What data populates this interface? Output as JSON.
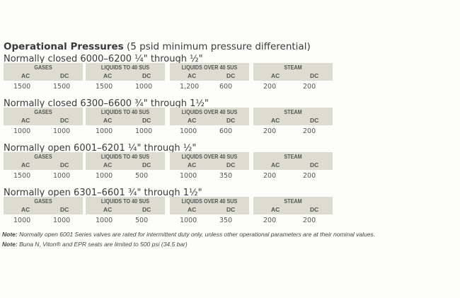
{
  "title": {
    "bold": "Operational Pressures",
    "rest": " (5 psid minimum pressure differential)"
  },
  "labels": {
    "ac": "AC",
    "dc": "DC"
  },
  "columns": [
    "GASES",
    "LIQUIDS TO 40 SUS",
    "LIQUIDS OVER 40 SUS",
    "STEAM"
  ],
  "sections": [
    {
      "title": "Normally closed 6000–6200 ¼\" through ½\"",
      "values": [
        [
          "1500",
          "1500"
        ],
        [
          "1500",
          "1000"
        ],
        [
          "1,200",
          "600"
        ],
        [
          "200",
          "200"
        ]
      ]
    },
    {
      "title": "Normally closed 6300–6600 ¾\" through 1½\"",
      "values": [
        [
          "1000",
          "1000"
        ],
        [
          "1000",
          "1000"
        ],
        [
          "1000",
          "600"
        ],
        [
          "200",
          "200"
        ]
      ]
    },
    {
      "title": "Normally open 6001–6201 ¼\" through ½\"",
      "values": [
        [
          "1500",
          "1000"
        ],
        [
          "1000",
          "500"
        ],
        [
          "1000",
          "350"
        ],
        [
          "200",
          "200"
        ]
      ]
    },
    {
      "title": "Normally open 6301–6601 ¾\" through 1½\"",
      "values": [
        [
          "1000",
          "1000"
        ],
        [
          "1000",
          "500"
        ],
        [
          "1000",
          "350"
        ],
        [
          "200",
          "200"
        ]
      ]
    }
  ],
  "notes": [
    {
      "label": "Note:",
      "text": " Normally open 6001 Series valves are rated for intermittent duty only, unless other operational parameters are at their nominal values."
    },
    {
      "label": "Note:",
      "text": " Buna N, Viton® and EPR seats are limited to 500 psi (34.5 bar)"
    }
  ]
}
